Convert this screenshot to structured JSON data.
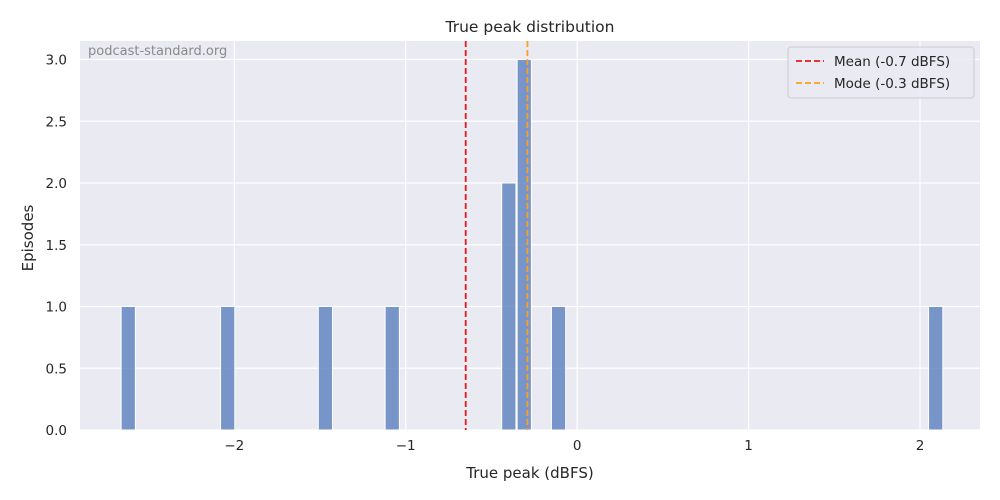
{
  "chart_data": {
    "type": "bar",
    "title": "True peak distribution",
    "xlabel": "True peak (dBFS)",
    "ylabel": "Episodes",
    "watermark": "podcast-standard.org",
    "xlim": [
      -2.9,
      2.35
    ],
    "ylim": [
      0,
      3.15
    ],
    "bin_width": 0.083,
    "x_ticks": [
      -2,
      -1,
      0,
      1,
      2
    ],
    "x_tick_labels": [
      "−2",
      "−1",
      "0",
      "1",
      "2"
    ],
    "y_ticks": [
      0,
      0.5,
      1.0,
      1.5,
      2.0,
      2.5,
      3.0
    ],
    "y_tick_labels": [
      "0.0",
      "0.5",
      "1.0",
      "1.5",
      "2.0",
      "2.5",
      "3.0"
    ],
    "grid": true,
    "bar_color": "#5a7fbd",
    "bins": [
      {
        "x": -2.66,
        "count": 1
      },
      {
        "x": -2.08,
        "count": 1
      },
      {
        "x": -1.51,
        "count": 1
      },
      {
        "x": -1.12,
        "count": 1
      },
      {
        "x": -0.44,
        "count": 2
      },
      {
        "x": -0.35,
        "count": 3
      },
      {
        "x": -0.15,
        "count": 1
      },
      {
        "x": 2.05,
        "count": 1
      }
    ],
    "reference_lines": [
      {
        "name": "Mean (-0.7 dBFS)",
        "x": -0.65,
        "color": "#e41a1c"
      },
      {
        "name": "Mode (-0.3 dBFS)",
        "x": -0.29,
        "color": "#ff9f1c"
      }
    ],
    "legend_position": "top-right"
  }
}
